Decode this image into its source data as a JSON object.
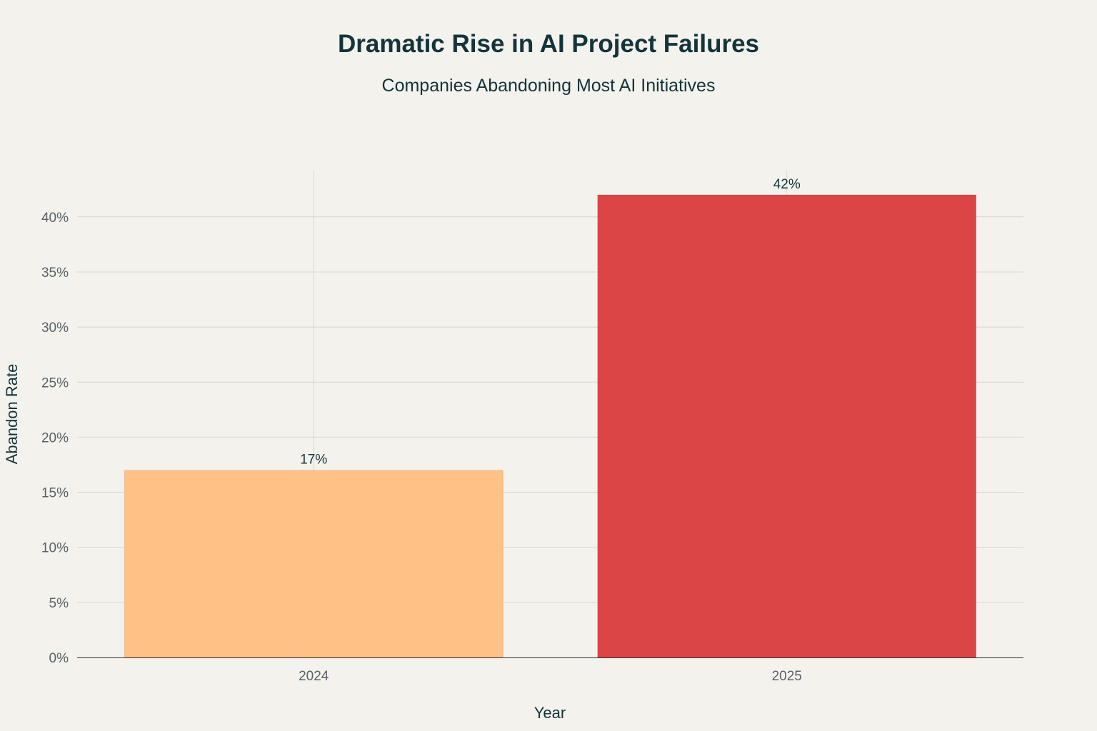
{
  "chart_data": {
    "type": "bar",
    "title": "Dramatic Rise in AI Project Failures",
    "subtitle": "Companies Abandoning Most AI Initiatives",
    "xlabel": "Year",
    "ylabel": "Abandon Rate",
    "categories": [
      "2024",
      "2025"
    ],
    "values": [
      17,
      42
    ],
    "data_labels": [
      "17%",
      "42%"
    ],
    "colors": [
      "#ffc185",
      "#db4545"
    ],
    "ylim": [
      0,
      44.2
    ],
    "yticks": [
      0,
      5,
      10,
      15,
      20,
      25,
      30,
      35,
      40
    ],
    "ytick_labels": [
      "0%",
      "5%",
      "10%",
      "15%",
      "20%",
      "25%",
      "30%",
      "35%",
      "40%"
    ],
    "grid": true,
    "legend": "none",
    "background": "#f3f2ed"
  }
}
